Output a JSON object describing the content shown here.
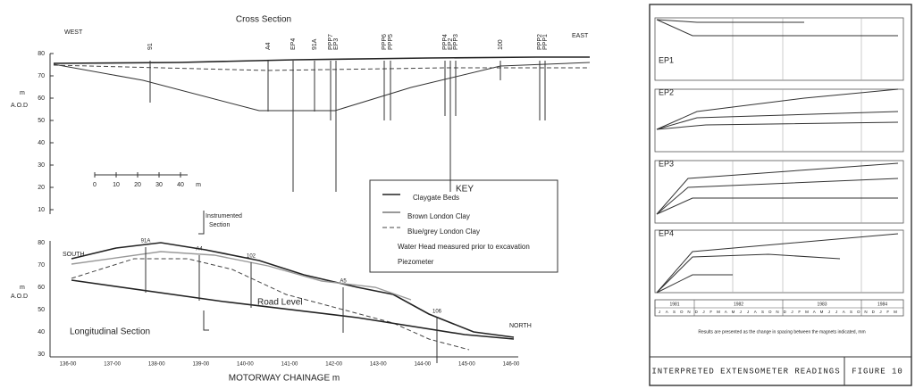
{
  "cross_section": {
    "title": "Cross Section",
    "west": "WEST",
    "east": "EAST",
    "unit": "m",
    "datum": "A.O.D",
    "y_labels": [
      "80",
      "70",
      "60",
      "50",
      "40",
      "30",
      "20",
      "10"
    ],
    "boreholes": [
      "91",
      "A4",
      "EP4",
      "91A",
      "PPP7",
      "EP3",
      "PPP6",
      "PPP5",
      "PPP4",
      "EP2",
      "PPP3",
      "100",
      "PPP2",
      "PPP1"
    ],
    "scale": [
      "0",
      "10",
      "20",
      "30",
      "40",
      "m"
    ]
  },
  "key": {
    "title": "KEY",
    "items": [
      "Claygate Beds",
      "Brown London Clay",
      "Blue/grey London Clay",
      "Water Head measured prior to excavation",
      "Piezometer"
    ]
  },
  "longitudinal_section": {
    "title": "Longitudinal Section",
    "south": "SOUTH",
    "north": "NORTH",
    "unit": "m",
    "datum": "A.O.D",
    "instrumented": [
      "Instrumented",
      "Section"
    ],
    "y_labels": [
      "80",
      "70",
      "60",
      "50",
      "40",
      "30"
    ],
    "boreholes": [
      "91A",
      "A4",
      "102",
      "A5",
      "106"
    ],
    "road": "Road Level",
    "x_labels": [
      "136-00",
      "137-00",
      "138-00",
      "139-00",
      "140-00",
      "141-00",
      "142-00",
      "143-00",
      "144-00",
      "145-00",
      "146-00"
    ],
    "x_title": "MOTORWAY CHAINAGE  m"
  },
  "extensometer": {
    "panels": [
      "EP1",
      "EP2",
      "EP3",
      "EP4"
    ],
    "years": [
      "1981",
      "1982",
      "1983",
      "1984"
    ],
    "months": [
      "J",
      "F",
      "M",
      "A",
      "M",
      "J",
      "J",
      "A",
      "S",
      "O",
      "N",
      "D"
    ],
    "caption": "Results are presented as the change in spacing between the magnets indicated, mm",
    "footer": "INTERPRETED EXTENSOMETER READINGS",
    "figure": "FIGURE 10"
  }
}
